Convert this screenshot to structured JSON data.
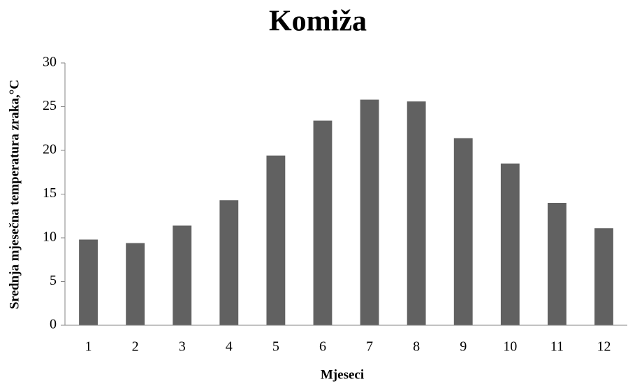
{
  "chart_data": {
    "type": "bar",
    "title": "Komiža",
    "x_label": "Mjeseci",
    "y_label": "Srednja mjesečna temperatura zraka,°C",
    "categories": [
      "1",
      "2",
      "3",
      "4",
      "5",
      "6",
      "7",
      "8",
      "9",
      "10",
      "11",
      "12"
    ],
    "values": [
      9.8,
      9.4,
      11.4,
      14.3,
      19.4,
      23.4,
      25.8,
      25.6,
      21.4,
      18.5,
      14.0,
      11.1
    ],
    "color": "#616161",
    "ylim": [
      0,
      30
    ],
    "yticks": [
      0,
      5,
      10,
      15,
      20,
      25,
      30
    ],
    "grid": false
  }
}
